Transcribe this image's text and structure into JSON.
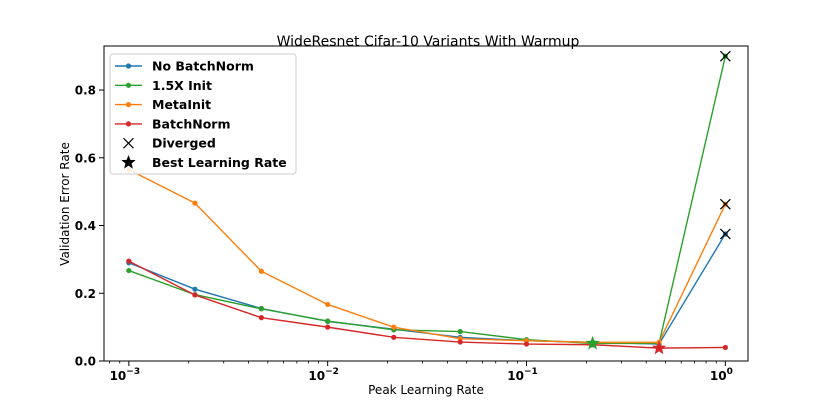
{
  "chart_data": {
    "type": "line",
    "title": "WideResnet Cifar-10 Variants With Warmup",
    "xlabel": "Peak Learning Rate",
    "ylabel": "Validation Error Rate",
    "xscale": "log",
    "xlim": [
      0.00075,
      1.3
    ],
    "ylim": [
      0.0,
      0.93
    ],
    "x_ticks": [
      {
        "value": 0.001,
        "base": "10",
        "exp": "−3"
      },
      {
        "value": 0.01,
        "base": "10",
        "exp": "−2"
      },
      {
        "value": 0.1,
        "base": "10",
        "exp": "−1"
      },
      {
        "value": 1,
        "base": "10",
        "exp": "0"
      }
    ],
    "y_ticks": [
      "0.0",
      "0.2",
      "0.4",
      "0.6",
      "0.8"
    ],
    "legend_position": "top-left",
    "series": [
      {
        "name": "No BatchNorm",
        "color": "#1f77b4",
        "x": [
          0.001,
          0.00215,
          0.00464,
          0.01,
          0.0215,
          0.0464,
          0.1,
          0.215,
          0.464,
          1.0
        ],
        "y": [
          0.29,
          0.212,
          0.155,
          0.117,
          0.094,
          0.07,
          0.06,
          0.055,
          0.05,
          0.375
        ],
        "diverged_index": 9,
        "best_index": null
      },
      {
        "name": "1.5X Init",
        "color": "#2ca02c",
        "x": [
          0.001,
          0.00215,
          0.00464,
          0.01,
          0.0215,
          0.0464,
          0.1,
          0.215,
          0.464,
          1.0
        ],
        "y": [
          0.267,
          0.196,
          0.154,
          0.118,
          0.092,
          0.087,
          0.063,
          0.052,
          0.052,
          0.9
        ],
        "diverged_index": 9,
        "best_index": 7
      },
      {
        "name": "MetaInit",
        "color": "#ff7f0e",
        "x": [
          0.001,
          0.00215,
          0.00464,
          0.01,
          0.0215,
          0.0464,
          0.1,
          0.215,
          0.464,
          1.0
        ],
        "y": [
          0.565,
          0.466,
          0.265,
          0.167,
          0.1,
          0.066,
          0.06,
          0.055,
          0.055,
          0.463
        ],
        "diverged_index": 9,
        "best_index": null
      },
      {
        "name": "BatchNorm",
        "color": "#d62728",
        "x": [
          0.001,
          0.00215,
          0.00464,
          0.01,
          0.0215,
          0.0464,
          0.1,
          0.215,
          0.464,
          1.0
        ],
        "y": [
          0.295,
          0.195,
          0.128,
          0.1,
          0.07,
          0.056,
          0.05,
          0.048,
          0.038,
          0.04
        ],
        "diverged_index": null,
        "best_index": 8
      }
    ],
    "legend_extra": [
      {
        "name": "Diverged",
        "marker": "x",
        "color": "#000000"
      },
      {
        "name": "Best Learning Rate",
        "marker": "star",
        "color": "#000000"
      }
    ]
  }
}
